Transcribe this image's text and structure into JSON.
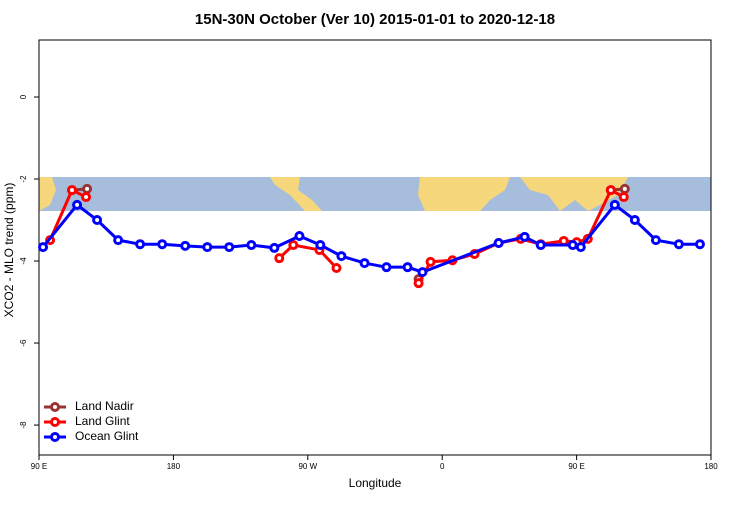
{
  "chart_data": {
    "type": "line",
    "title": "15N-30N October (Ver 10)   2015-01-01 to 2020-12-18",
    "x_label": "Longitude",
    "y_label": "XCO2 - MLO trend (ppm)",
    "xlim": [
      90,
      540
    ],
    "xticks": [
      {
        "value": 90,
        "label": "90 E"
      },
      {
        "value": 180,
        "label": "180"
      },
      {
        "value": 270,
        "label": "90 W"
      },
      {
        "value": 360,
        "label": "0"
      },
      {
        "value": 450,
        "label": "90 E"
      },
      {
        "value": 540,
        "label": "180"
      }
    ],
    "ylim": [
      -8.73,
      1.39
    ],
    "yticks": [
      -8,
      -6,
      -4,
      -2,
      0
    ],
    "legend": "bottomleft",
    "series": [
      {
        "name": "Land Nadir",
        "color": "#993333",
        "x": [
          112.1,
          122.2,
          null,
          344.2,
          null,
          472.9,
          482.3
        ],
        "values": [
          -2.27,
          -2.24,
          null,
          -4.44,
          null,
          -2.27,
          -2.24
        ]
      },
      {
        "name": "Land Glint",
        "color": "#ff0000",
        "x": [
          97.4,
          112.1,
          121.5,
          null,
          250.9,
          260.3,
          277.8,
          289.2,
          null,
          344.2,
          352.2,
          366.9,
          381.7,
          397.8,
          412.6,
          426,
          441.4,
          450.1,
          457.5,
          472.9,
          481.6
        ],
        "values": [
          -3.49,
          -2.27,
          -2.44,
          null,
          -3.93,
          -3.61,
          -3.73,
          -4.17,
          null,
          -4.54,
          -4.02,
          -3.98,
          -3.83,
          -3.56,
          -3.46,
          -3.59,
          -3.51,
          -3.54,
          -3.46,
          -2.27,
          -2.44
        ]
      },
      {
        "name": "Ocean Glint",
        "color": "#0000ff",
        "x": [
          92.7,
          115.5,
          128.9,
          143,
          157.7,
          172.5,
          187.9,
          202.7,
          217.4,
          232.2,
          247.6,
          264.4,
          278.4,
          292.5,
          308,
          322.7,
          336.8,
          346.8,
          397.8,
          415.2,
          426,
          447.4,
          452.8,
          475.6,
          489,
          503.1,
          518.5,
          532.6
        ],
        "values": [
          -3.66,
          -2.63,
          -3.0,
          -3.49,
          -3.59,
          -3.59,
          -3.63,
          -3.66,
          -3.66,
          -3.61,
          -3.68,
          -3.39,
          -3.61,
          -3.88,
          -4.05,
          -4.15,
          -4.15,
          -4.27,
          -3.56,
          -3.41,
          -3.61,
          -3.61,
          -3.66,
          -2.63,
          -3.0,
          -3.49,
          -3.59,
          -3.59
        ]
      }
    ]
  }
}
